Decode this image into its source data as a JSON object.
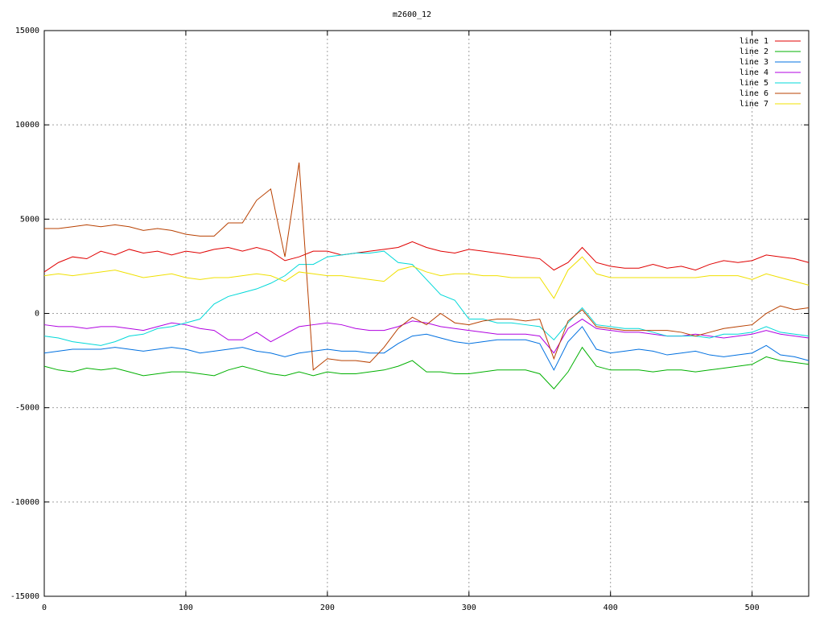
{
  "chart_data": {
    "type": "line",
    "title": "m2600_12",
    "x": [
      0,
      10,
      20,
      30,
      40,
      50,
      60,
      70,
      80,
      90,
      100,
      110,
      120,
      130,
      140,
      150,
      160,
      170,
      180,
      190,
      200,
      210,
      220,
      230,
      240,
      250,
      260,
      270,
      280,
      290,
      300,
      310,
      320,
      330,
      340,
      350,
      360,
      370,
      380,
      390,
      400,
      410,
      420,
      430,
      440,
      450,
      460,
      470,
      480,
      490,
      500,
      510,
      520,
      530,
      540
    ],
    "xlim": [
      0,
      540
    ],
    "xticks": [
      0,
      100,
      200,
      300,
      400,
      500
    ],
    "ylim": [
      -15000,
      15000
    ],
    "yticks": [
      -15000,
      -10000,
      -5000,
      0,
      5000,
      10000,
      15000
    ],
    "grid": true,
    "legend": "upper right",
    "series": [
      {
        "name": "line 1",
        "color": "#e00000",
        "values": [
          2200,
          2700,
          3000,
          2900,
          3300,
          3100,
          3400,
          3200,
          3300,
          3100,
          3300,
          3200,
          3400,
          3500,
          3300,
          3500,
          3300,
          2800,
          3000,
          3300,
          3300,
          3100,
          3200,
          3300,
          3400,
          3500,
          3800,
          3500,
          3300,
          3200,
          3400,
          3300,
          3200,
          3100,
          3000,
          2900,
          2300,
          2700,
          3500,
          2700,
          2500,
          2400,
          2400,
          2600,
          2400,
          2500,
          2300,
          2600,
          2800,
          2700,
          2800,
          3100,
          3000,
          2900,
          2700
        ]
      },
      {
        "name": "line 2",
        "color": "#00b000",
        "values": [
          -2800,
          -3000,
          -3100,
          -2900,
          -3000,
          -2900,
          -3100,
          -3300,
          -3200,
          -3100,
          -3100,
          -3200,
          -3300,
          -3000,
          -2800,
          -3000,
          -3200,
          -3300,
          -3100,
          -3300,
          -3100,
          -3200,
          -3200,
          -3100,
          -3000,
          -2800,
          -2500,
          -3100,
          -3100,
          -3200,
          -3200,
          -3100,
          -3000,
          -3000,
          -3000,
          -3200,
          -4000,
          -3100,
          -1800,
          -2800,
          -3000,
          -3000,
          -3000,
          -3100,
          -3000,
          -3000,
          -3100,
          -3000,
          -2900,
          -2800,
          -2700,
          -2300,
          -2500,
          -2600,
          -2700
        ]
      },
      {
        "name": "line 3",
        "color": "#0070e0",
        "values": [
          -2100,
          -2000,
          -1900,
          -1900,
          -1900,
          -1800,
          -1900,
          -2000,
          -1900,
          -1800,
          -1900,
          -2100,
          -2000,
          -1900,
          -1800,
          -2000,
          -2100,
          -2300,
          -2100,
          -2000,
          -1900,
          -2000,
          -2000,
          -2100,
          -2100,
          -1600,
          -1200,
          -1100,
          -1300,
          -1500,
          -1600,
          -1500,
          -1400,
          -1400,
          -1400,
          -1600,
          -3000,
          -1500,
          -700,
          -1900,
          -2100,
          -2000,
          -1900,
          -2000,
          -2200,
          -2100,
          -2000,
          -2200,
          -2300,
          -2200,
          -2100,
          -1700,
          -2200,
          -2300,
          -2500
        ]
      },
      {
        "name": "line 4",
        "color": "#b000e0",
        "values": [
          -600,
          -700,
          -700,
          -800,
          -700,
          -700,
          -800,
          -900,
          -700,
          -500,
          -600,
          -800,
          -900,
          -1400,
          -1400,
          -1000,
          -1500,
          -1100,
          -700,
          -600,
          -500,
          -600,
          -800,
          -900,
          -900,
          -700,
          -400,
          -500,
          -700,
          -800,
          -900,
          -1000,
          -1100,
          -1100,
          -1100,
          -1200,
          -2100,
          -800,
          -300,
          -800,
          -900,
          -1000,
          -1000,
          -1100,
          -1200,
          -1200,
          -1100,
          -1200,
          -1300,
          -1200,
          -1100,
          -900,
          -1100,
          -1200,
          -1300
        ]
      },
      {
        "name": "line 5",
        "color": "#00d8d8",
        "values": [
          -1200,
          -1300,
          -1500,
          -1600,
          -1700,
          -1500,
          -1200,
          -1100,
          -800,
          -700,
          -500,
          -300,
          500,
          900,
          1100,
          1300,
          1600,
          2000,
          2600,
          2600,
          3000,
          3100,
          3200,
          3200,
          3300,
          2700,
          2600,
          1800,
          1000,
          700,
          -300,
          -300,
          -500,
          -500,
          -600,
          -700,
          -1400,
          -500,
          300,
          -600,
          -700,
          -800,
          -800,
          -1000,
          -1200,
          -1200,
          -1200,
          -1300,
          -1100,
          -1100,
          -1000,
          -700,
          -1000,
          -1100,
          -1200
        ]
      },
      {
        "name": "line 6",
        "color": "#b84000",
        "values": [
          4500,
          4500,
          4600,
          4700,
          4600,
          4700,
          4600,
          4400,
          4500,
          4400,
          4200,
          4100,
          4100,
          4800,
          4800,
          6000,
          6600,
          3000,
          8000,
          -3000,
          -2400,
          -2500,
          -2500,
          -2600,
          -1800,
          -800,
          -200,
          -600,
          0,
          -500,
          -600,
          -400,
          -300,
          -300,
          -400,
          -300,
          -2400,
          -400,
          200,
          -700,
          -800,
          -900,
          -900,
          -900,
          -900,
          -1000,
          -1200,
          -1000,
          -800,
          -700,
          -600,
          0,
          400,
          200,
          300
        ]
      },
      {
        "name": "line 7",
        "color": "#f0e000",
        "values": [
          2000,
          2100,
          2000,
          2100,
          2200,
          2300,
          2100,
          1900,
          2000,
          2100,
          1900,
          1800,
          1900,
          1900,
          2000,
          2100,
          2000,
          1700,
          2200,
          2100,
          2000,
          2000,
          1900,
          1800,
          1700,
          2300,
          2500,
          2200,
          2000,
          2100,
          2100,
          2000,
          2000,
          1900,
          1900,
          1900,
          800,
          2300,
          3000,
          2100,
          1900,
          1900,
          1900,
          1900,
          1900,
          1900,
          1900,
          2000,
          2000,
          2000,
          1800,
          2100,
          1900,
          1700,
          1500
        ]
      }
    ]
  }
}
